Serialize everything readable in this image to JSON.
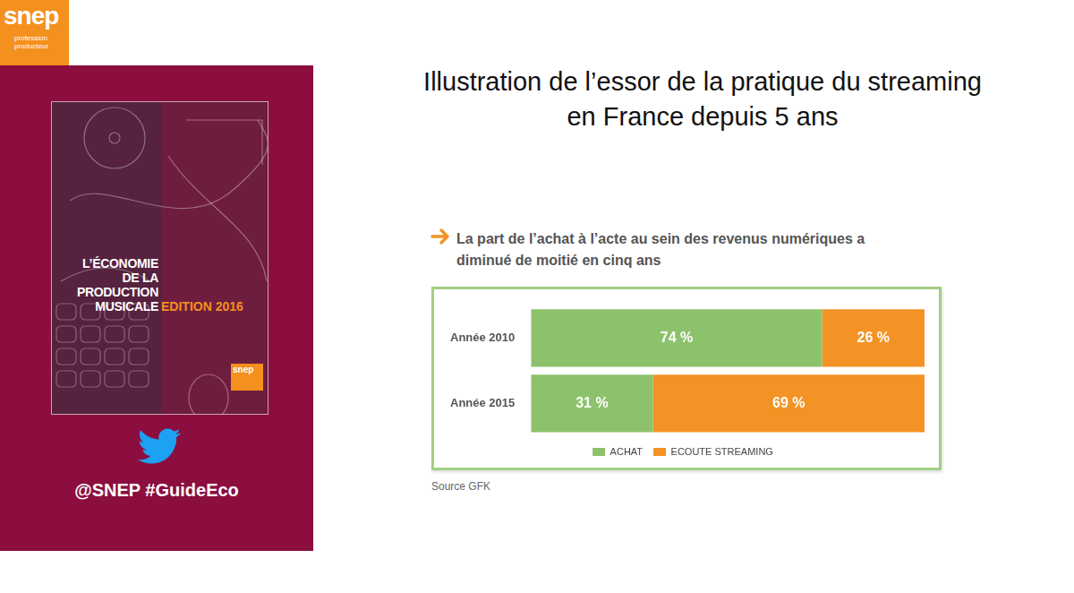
{
  "page": {
    "logo": {
      "name": "snep",
      "tagline": "profession producteur"
    },
    "cover": {
      "title_lines": [
        "L’ÉCONOMIE",
        "DE LA",
        "PRODUCTION",
        "MUSICALE"
      ],
      "edition": "EDITION 2016"
    },
    "handle": "@SNEP #GuideEco",
    "title_lines": [
      "Illustration de l’essor de la pratique du streaming",
      "en France depuis 5 ans"
    ],
    "source": "Source GFK"
  },
  "chart_data": {
    "type": "bar",
    "orientation": "horizontal",
    "stacked": true,
    "title": [
      "La part de l’achat à l’acte au sein des revenus numériques a",
      "diminué de moitié en cinq ans"
    ],
    "categories": [
      "Année 2010",
      "Année 2015"
    ],
    "series": [
      {
        "name": "ACHAT",
        "color": "#8dc26c",
        "values": [
          74,
          31
        ],
        "value_labels": [
          "74 %",
          "31 %"
        ]
      },
      {
        "name": "ECOUTE STREAMING",
        "color": "#f39325",
        "values": [
          26,
          69
        ],
        "value_labels": [
          "26 %",
          "69 %"
        ]
      }
    ],
    "xlim": [
      0,
      100
    ],
    "grid": false,
    "legend": "bottom",
    "data_labels": true,
    "tick_labels": "y"
  }
}
